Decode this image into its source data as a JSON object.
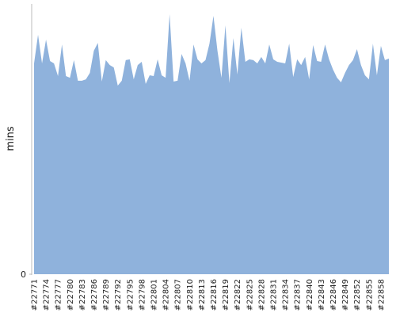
{
  "chart_data": {
    "type": "area",
    "y_label": "mins",
    "categories": [
      "#22771",
      null,
      null,
      "#22774",
      null,
      null,
      "#22777",
      null,
      null,
      "#22780",
      null,
      null,
      "#22783",
      null,
      null,
      "#22786",
      null,
      null,
      "#22789",
      null,
      null,
      "#22792",
      null,
      null,
      "#22795",
      null,
      null,
      "#22798",
      null,
      null,
      "#22801",
      null,
      null,
      "#22804",
      null,
      null,
      "#22807",
      null,
      null,
      "#22810",
      null,
      null,
      "#22813",
      null,
      null,
      "#22816",
      null,
      null,
      "#22819",
      null,
      null,
      "#22822",
      null,
      null,
      "#22825",
      null,
      null,
      "#22828",
      null,
      null,
      "#22831",
      null,
      null,
      "#22834",
      null,
      null,
      "#22837",
      null,
      null,
      "#22840",
      null,
      null,
      "#22843",
      null,
      null,
      "#22846",
      null,
      null,
      "#22849",
      null,
      null,
      "#22852",
      null,
      null,
      "#22855",
      null,
      null,
      "#22858",
      null,
      null
    ],
    "values": [
      78.0,
      88.6,
      78.0,
      86.8,
      78.9,
      78.0,
      73.3,
      85.0,
      73.3,
      72.7,
      79.2,
      71.6,
      71.6,
      72.1,
      74.5,
      82.7,
      85.6,
      71.3,
      79.2,
      77.4,
      76.5,
      69.8,
      71.6,
      79.2,
      79.5,
      72.1,
      77.4,
      78.6,
      70.4,
      73.6,
      73.3,
      79.5,
      73.6,
      72.7,
      96.2,
      71.3,
      71.6,
      81.5,
      78.0,
      71.6,
      85.0,
      79.5,
      78.0,
      79.2,
      85.3,
      95.6,
      82.7,
      72.7,
      92.1,
      70.7,
      87.4,
      73.9,
      91.2,
      78.6,
      79.5,
      79.2,
      78.0,
      80.4,
      78.0,
      85.0,
      79.5,
      78.6,
      78.3,
      78.0,
      85.3,
      73.0,
      79.5,
      77.4,
      80.4,
      72.1,
      84.8,
      78.9,
      78.6,
      85.0,
      79.5,
      75.7,
      72.7,
      71.0,
      74.5,
      77.4,
      79.2,
      83.3,
      77.4,
      73.6,
      72.1,
      85.3,
      73.6,
      84.5,
      79.2,
      79.8
    ],
    "color": "#8fb2dc",
    "ylim": [
      0,
      100
    ],
    "yticks": [
      0
    ]
  }
}
